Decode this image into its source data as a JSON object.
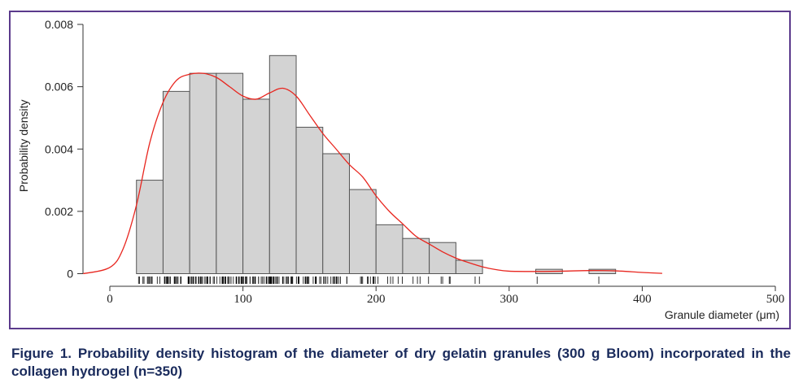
{
  "chart_data": {
    "type": "bar",
    "title": "",
    "xlabel": "Granule diameter (μm)",
    "ylabel": "Probability density",
    "xlim": [
      0,
      500
    ],
    "ylim": [
      0,
      0.008
    ],
    "yticks": [
      "0",
      "0.002",
      "0.004",
      "0.006",
      "0.008"
    ],
    "xticks": [
      "0",
      "100",
      "200",
      "300",
      "400",
      "500"
    ],
    "bin_width": 20,
    "bins": [
      {
        "x0": 20,
        "x1": 40,
        "density": 0.003
      },
      {
        "x0": 40,
        "x1": 60,
        "density": 0.00585
      },
      {
        "x0": 60,
        "x1": 80,
        "density": 0.00643
      },
      {
        "x0": 80,
        "x1": 100,
        "density": 0.00643
      },
      {
        "x0": 100,
        "x1": 120,
        "density": 0.0056
      },
      {
        "x0": 120,
        "x1": 140,
        "density": 0.007
      },
      {
        "x0": 140,
        "x1": 160,
        "density": 0.0047
      },
      {
        "x0": 160,
        "x1": 180,
        "density": 0.00385
      },
      {
        "x0": 180,
        "x1": 200,
        "density": 0.0027
      },
      {
        "x0": 200,
        "x1": 220,
        "density": 0.00157
      },
      {
        "x0": 220,
        "x1": 240,
        "density": 0.00113
      },
      {
        "x0": 240,
        "x1": 260,
        "density": 0.001
      },
      {
        "x0": 260,
        "x1": 280,
        "density": 0.00043
      },
      {
        "x0": 320,
        "x1": 340,
        "density": 0.00014
      },
      {
        "x0": 360,
        "x1": 380,
        "density": 0.00014
      }
    ],
    "kde_curve": {
      "x": [
        -20,
        0,
        10,
        20,
        30,
        40,
        50,
        60,
        70,
        80,
        90,
        100,
        110,
        120,
        130,
        140,
        150,
        160,
        170,
        180,
        190,
        200,
        210,
        220,
        230,
        240,
        250,
        260,
        270,
        280,
        290,
        300,
        320,
        340,
        360,
        380,
        400,
        415
      ],
      "y": [
        0.0,
        0.0002,
        0.0008,
        0.0022,
        0.0042,
        0.0055,
        0.0062,
        0.0064,
        0.00643,
        0.0063,
        0.006,
        0.0057,
        0.0056,
        0.0058,
        0.00595,
        0.0057,
        0.0051,
        0.0045,
        0.004,
        0.0035,
        0.0031,
        0.0025,
        0.002,
        0.0016,
        0.0012,
        0.00095,
        0.0007,
        0.0005,
        0.00035,
        0.00022,
        0.00013,
        8e-05,
        7e-05,
        8e-05,
        0.0001,
        9e-05,
        4e-05,
        1e-05
      ],
      "color": "#e8261f"
    },
    "rug_color": "#000000",
    "bar_fill": "#d3d3d3",
    "bar_stroke": "#555555",
    "grid": false
  },
  "caption": "Figure 1. Probability density histogram of the diameter of dry gelatin granules (300 g Bloom) incorporated in the collagen hydrogel (n=350)"
}
